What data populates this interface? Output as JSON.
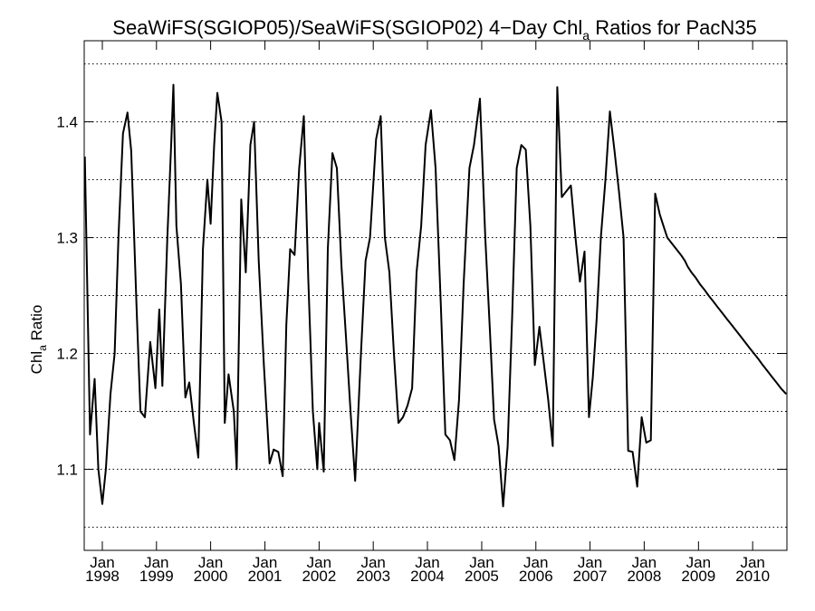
{
  "chart_data": {
    "type": "line",
    "title": "SeaWiFS(SGIOP05)/SeaWiFS(SGIOP02) 4−Day Chl",
    "title_subscript": "a",
    "title_suffix": " Ratios for PacN35",
    "ylabel": "Chl",
    "ylabel_subscript": "a",
    "ylabel_suffix": " Ratio",
    "xlabel": "",
    "xlim": [
      "1997-09-01",
      "2010-08-20"
    ],
    "ylim": [
      1.03,
      1.47
    ],
    "yticks": [
      1.1,
      1.2,
      1.3,
      1.4
    ],
    "ytick_labels": [
      "1.1",
      "1.2",
      "1.3",
      "1.4"
    ],
    "ygrid": [
      1.05,
      1.1,
      1.15,
      1.2,
      1.25,
      1.3,
      1.35,
      1.4,
      1.45
    ],
    "grid": "horizontal dotted",
    "xticks": [
      {
        "month": "Jan",
        "year": "1998",
        "date": "1998-01-01"
      },
      {
        "month": "Jan",
        "year": "1999",
        "date": "1999-01-01"
      },
      {
        "month": "Jan",
        "year": "2000",
        "date": "2000-01-01"
      },
      {
        "month": "Jan",
        "year": "2001",
        "date": "2001-01-01"
      },
      {
        "month": "Jan",
        "year": "2002",
        "date": "2002-01-01"
      },
      {
        "month": "Jan",
        "year": "2003",
        "date": "2003-01-01"
      },
      {
        "month": "Jan",
        "year": "2004",
        "date": "2004-01-01"
      },
      {
        "month": "Jan",
        "year": "2005",
        "date": "2005-01-01"
      },
      {
        "month": "Jan",
        "year": "2006",
        "date": "2006-01-01"
      },
      {
        "month": "Jan",
        "year": "2007",
        "date": "2007-01-01"
      },
      {
        "month": "Jan",
        "year": "2008",
        "date": "2008-01-01"
      },
      {
        "month": "Jan",
        "year": "2009",
        "date": "2009-01-01"
      },
      {
        "month": "Jan",
        "year": "2010",
        "date": "2010-01-01"
      }
    ],
    "line_color": "#000000",
    "series": [
      {
        "x": [
          "1997-09-05",
          "1997-10-10",
          "1997-11-10",
          "1997-12-05",
          "1998-01-01",
          "1998-01-25",
          "1998-02-25",
          "1998-03-25",
          "1998-04-20",
          "1998-05-20",
          "1998-06-20",
          "1998-07-15",
          "1998-08-20",
          "1998-09-15",
          "1998-10-15",
          "1998-11-20",
          "1998-12-25",
          "1999-01-20",
          "1999-02-10",
          "1999-03-15",
          "1999-04-10",
          "1999-04-25",
          "1999-05-15",
          "1999-06-15",
          "1999-07-15",
          "1999-08-10",
          "1999-09-10",
          "1999-10-10",
          "1999-11-10",
          "1999-12-10",
          "2000-01-01",
          "2000-01-25",
          "2000-02-15",
          "2000-03-15",
          "2000-04-05",
          "2000-05-01",
          "2000-06-05",
          "2000-06-25",
          "2000-07-25",
          "2000-08-25",
          "2000-09-25",
          "2000-10-20",
          "2000-11-20",
          "2000-12-25",
          "2001-02-01",
          "2001-03-01",
          "2001-04-01",
          "2001-05-01",
          "2001-05-25",
          "2001-06-20",
          "2001-07-20",
          "2001-08-20",
          "2001-09-20",
          "2001-10-20",
          "2001-11-20",
          "2001-12-20",
          "2002-01-01",
          "2002-02-01",
          "2002-03-01",
          "2002-04-01",
          "2002-05-01",
          "2002-06-01",
          "2002-07-01",
          "2002-08-01",
          "2002-09-01",
          "2002-10-10",
          "2002-11-10",
          "2002-12-10",
          "2003-01-20",
          "2003-02-20",
          "2003-03-20",
          "2003-04-20",
          "2003-05-20",
          "2003-06-20",
          "2003-07-20",
          "2003-08-20",
          "2003-09-20",
          "2003-10-20",
          "2003-11-20",
          "2003-12-20",
          "2004-01-25",
          "2004-02-25",
          "2004-04-01",
          "2004-05-01",
          "2004-06-01",
          "2004-07-01",
          "2004-08-01",
          "2004-09-01",
          "2004-10-10",
          "2004-11-10",
          "2004-12-20",
          "2005-01-25",
          "2005-02-25",
          "2005-03-25",
          "2005-04-25",
          "2005-05-25",
          "2005-06-25",
          "2005-07-25",
          "2005-08-25",
          "2005-09-25",
          "2005-10-25",
          "2005-11-25",
          "2005-12-25",
          "2006-01-25",
          "2006-02-25",
          "2006-03-25",
          "2006-04-25",
          "2006-05-25",
          "2006-06-25",
          "2006-07-25",
          "2006-08-25",
          "2006-09-25",
          "2006-10-25",
          "2006-11-25",
          "2006-12-25",
          "2007-01-20",
          "2007-02-15",
          "2007-03-15",
          "2007-04-15",
          "2007-05-15",
          "2007-06-15",
          "2007-07-15",
          "2007-08-15",
          "2007-09-15",
          "2007-10-15",
          "2007-11-15",
          "2007-12-15",
          "2008-01-15",
          "2008-02-15",
          "2008-03-15",
          "2008-04-15",
          "2008-05-10",
          "2008-06-05",
          "2008-07-05",
          "2008-08-05",
          "2008-09-05",
          "2008-10-01",
          "2008-10-20",
          "2008-11-15",
          "2008-12-15",
          "2009-01-10",
          "2009-02-10",
          "2009-03-10",
          "2009-04-10",
          "2009-05-10",
          "2009-06-10",
          "2009-07-10",
          "2009-08-10",
          "2009-09-10",
          "2009-10-10",
          "2009-11-10",
          "2009-12-10",
          "2010-01-10",
          "2010-02-10",
          "2010-03-10",
          "2010-04-10",
          "2010-05-10",
          "2010-06-10",
          "2010-07-10",
          "2010-08-15"
        ],
        "values": [
          1.37,
          1.13,
          1.178,
          1.1,
          1.07,
          1.1,
          1.165,
          1.2,
          1.3,
          1.39,
          1.408,
          1.375,
          1.24,
          1.15,
          1.145,
          1.21,
          1.17,
          1.238,
          1.172,
          1.3,
          1.38,
          1.432,
          1.31,
          1.26,
          1.162,
          1.175,
          1.14,
          1.11,
          1.29,
          1.35,
          1.312,
          1.38,
          1.425,
          1.4,
          1.14,
          1.182,
          1.15,
          1.1,
          1.333,
          1.27,
          1.38,
          1.4,
          1.28,
          1.19,
          1.105,
          1.117,
          1.115,
          1.094,
          1.225,
          1.29,
          1.285,
          1.36,
          1.405,
          1.265,
          1.15,
          1.1,
          1.14,
          1.098,
          1.29,
          1.373,
          1.36,
          1.275,
          1.215,
          1.15,
          1.09,
          1.2,
          1.28,
          1.3,
          1.385,
          1.405,
          1.3,
          1.27,
          1.2,
          1.14,
          1.145,
          1.155,
          1.17,
          1.27,
          1.31,
          1.38,
          1.41,
          1.36,
          1.24,
          1.13,
          1.125,
          1.108,
          1.16,
          1.26,
          1.36,
          1.38,
          1.42,
          1.3,
          1.22,
          1.143,
          1.12,
          1.068,
          1.12,
          1.23,
          1.36,
          1.38,
          1.376,
          1.31,
          1.19,
          1.223,
          1.19,
          1.16,
          1.12,
          1.43,
          1.335,
          1.34,
          1.345,
          1.3,
          1.262,
          1.288,
          1.145,
          1.18,
          1.23,
          1.3,
          1.35,
          1.409,
          1.375,
          1.34,
          1.3,
          1.116,
          1.115,
          1.085,
          1.145,
          1.123,
          1.125,
          1.338,
          1.32,
          1.31,
          1.3,
          1.295,
          1.29,
          1.285,
          1.28,
          1.275,
          1.27,
          1.265,
          1.26,
          1.255,
          1.25,
          1.245,
          1.24,
          1.235,
          1.23,
          1.225,
          1.22,
          1.215,
          1.21,
          1.205,
          1.2,
          1.195,
          1.19,
          1.185,
          1.18,
          1.175,
          1.17,
          1.165
        ]
      }
    ]
  }
}
